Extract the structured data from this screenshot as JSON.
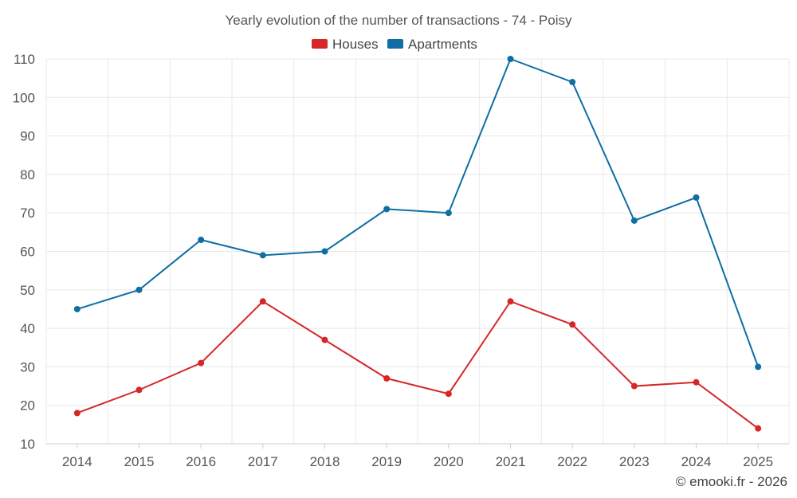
{
  "chart_data": {
    "type": "line",
    "title": "Yearly evolution of the number of transactions - 74 - Poisy",
    "xlabel": "",
    "ylabel": "",
    "categories": [
      "2014",
      "2015",
      "2016",
      "2017",
      "2018",
      "2019",
      "2020",
      "2021",
      "2022",
      "2023",
      "2024",
      "2025"
    ],
    "ylim": [
      10,
      110
    ],
    "yticks": [
      10,
      20,
      30,
      40,
      50,
      60,
      70,
      80,
      90,
      100,
      110
    ],
    "grid": true,
    "legend_position": "top-center",
    "series": [
      {
        "name": "Houses",
        "color": "#d62728",
        "values": [
          18,
          24,
          31,
          47,
          37,
          27,
          23,
          47,
          41,
          25,
          26,
          14
        ]
      },
      {
        "name": "Apartments",
        "color": "#0f6ea3",
        "values": [
          45,
          50,
          63,
          59,
          60,
          71,
          70,
          110,
          104,
          68,
          74,
          30
        ]
      }
    ]
  },
  "credit": "© emooki.fr - 2026"
}
